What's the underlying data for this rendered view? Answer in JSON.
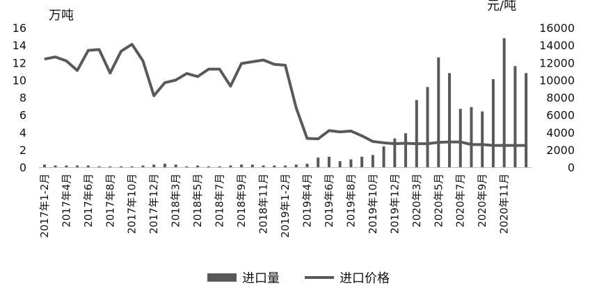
{
  "chart_data": {
    "type": "bar",
    "title": "",
    "y_left_unit": "万吨",
    "y_right_unit": "元/吨",
    "y_left_ticks": [
      "0",
      "2",
      "4",
      "6",
      "8",
      "10",
      "12",
      "14",
      "16"
    ],
    "y_right_ticks": [
      "0",
      "2000",
      "4000",
      "6000",
      "8000",
      "10000",
      "12000",
      "14000",
      "16000"
    ],
    "y_left_range": [
      0,
      16
    ],
    "y_right_range": [
      0,
      16000
    ],
    "grid": false,
    "legend_position": "bottom",
    "x_tick_labels": [
      "2017年1-2月",
      "2017年4月",
      "2017年6月",
      "2017年8月",
      "2017年10月",
      "2017年12月",
      "2018年3月",
      "2018年5月",
      "2018年7月",
      "2018年9月",
      "2018年11月",
      "2019年1-2月",
      "2019年4月",
      "2019年6月",
      "2019年8月",
      "2019年10月",
      "2019年12月",
      "2020年3月",
      "2020年5月",
      "2020年7月",
      "2020年9月",
      "2020年11月"
    ],
    "x_tick_every": 2,
    "series": [
      {
        "name": "进口量",
        "type": "bar",
        "axis": "left",
        "color": "#595959",
        "values": [
          0.3,
          0.2,
          0.2,
          0.2,
          0.2,
          0.1,
          0.1,
          0.1,
          0.1,
          0.2,
          0.3,
          0.4,
          0.3,
          0.1,
          0.2,
          0.1,
          0.1,
          0.2,
          0.3,
          0.3,
          0.2,
          0.2,
          0.2,
          0.3,
          0.4,
          1.1,
          1.2,
          0.7,
          0.9,
          1.2,
          1.4,
          2.4,
          3.3,
          3.9,
          7.7,
          9.2,
          12.6,
          10.8,
          6.7,
          6.9,
          6.4,
          10.1,
          14.8,
          11.6,
          10.8
        ]
      },
      {
        "name": "进口价格",
        "type": "line",
        "axis": "right",
        "color": "#595959",
        "values": [
          12400,
          12650,
          12200,
          11100,
          13400,
          13500,
          10800,
          13300,
          14100,
          12200,
          8200,
          9700,
          10000,
          10750,
          10400,
          11250,
          11250,
          9300,
          11900,
          12100,
          12300,
          11800,
          11700,
          6800,
          3300,
          3250,
          4200,
          4050,
          4150,
          3600,
          2950,
          2800,
          2700,
          2750,
          2700,
          2700,
          2850,
          2900,
          2900,
          2600,
          2600,
          2500,
          2500,
          2500,
          2500
        ]
      }
    ]
  }
}
